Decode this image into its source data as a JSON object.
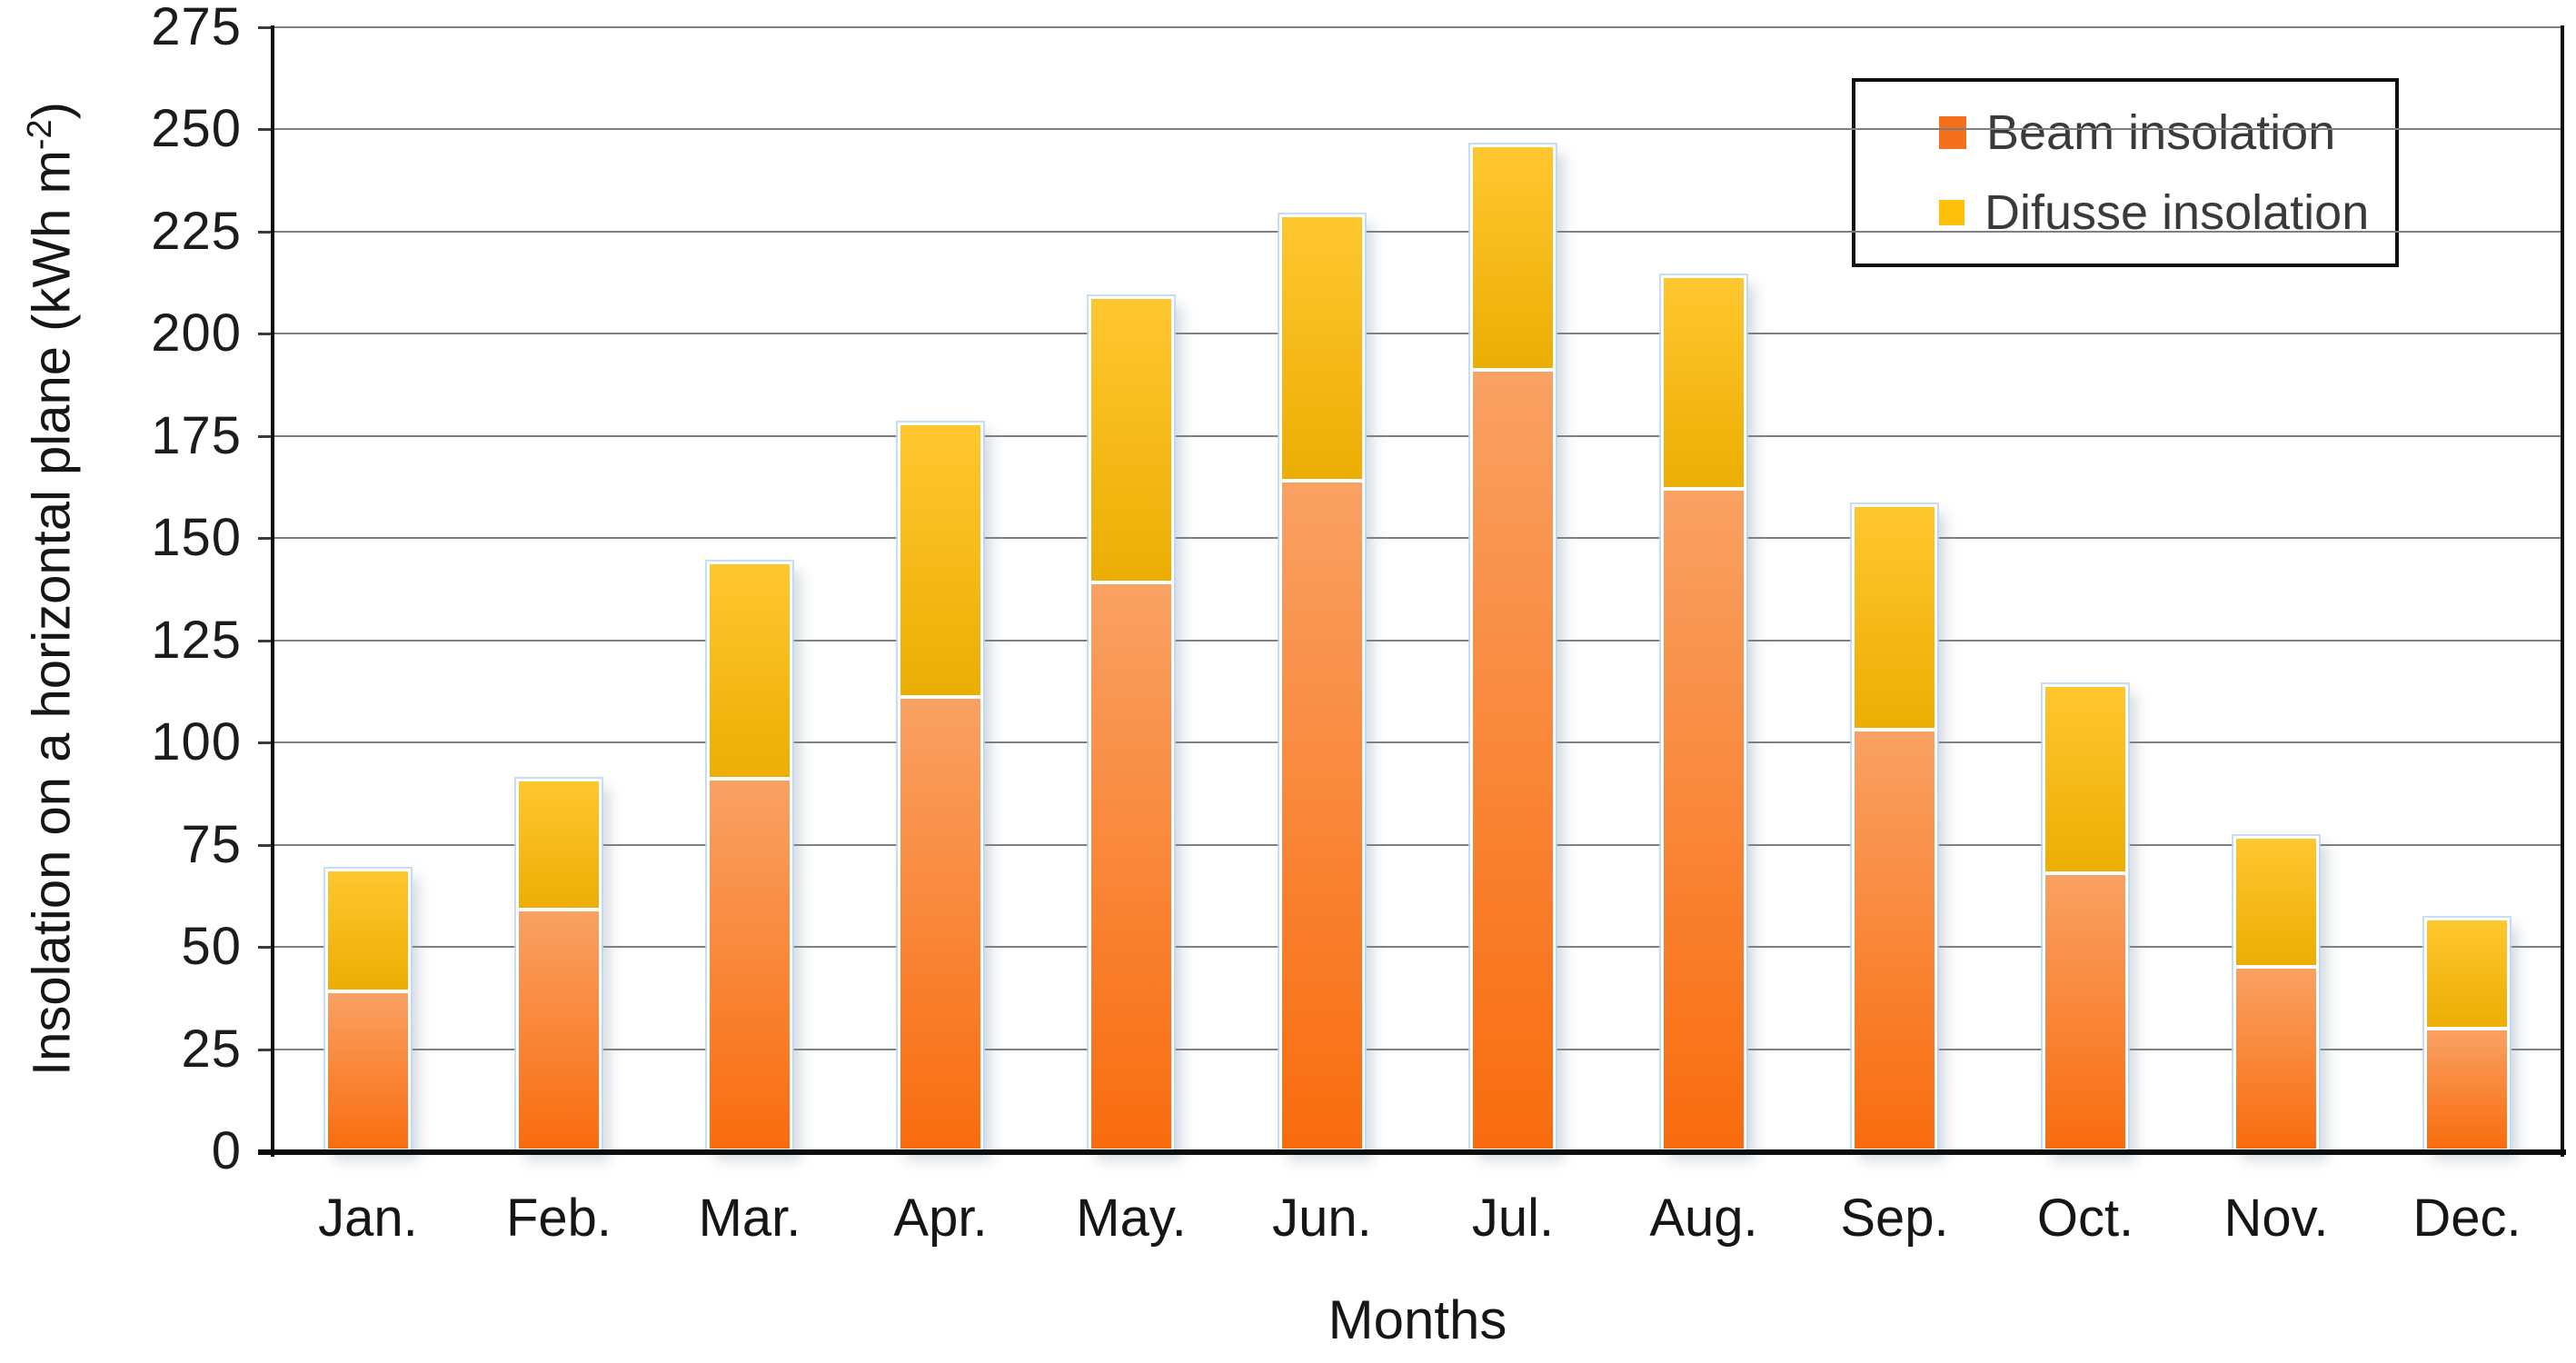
{
  "chart_data": {
    "type": "bar",
    "stacked": true,
    "title": "",
    "xlabel": "Months",
    "ylabel": "Insolation on a horizontal plane (kWh m-2)",
    "ylabel_parts": {
      "main": "Insolation on a horizontal plane (kWh m",
      "sup": "-2",
      "close": ")"
    },
    "categories": [
      "Jan.",
      "Feb.",
      "Mar.",
      "Apr.",
      "May.",
      "Jun.",
      "Jul.",
      "Aug.",
      "Sep.",
      "Oct.",
      "Nov.",
      "Dec."
    ],
    "series": [
      {
        "name": "Beam insolation",
        "legend_color": "#f4701d",
        "color_top": "#f9a163",
        "color_bottom": "#f96c0e",
        "values": [
          38,
          58,
          90,
          110,
          138,
          163,
          190,
          161,
          102,
          67,
          44,
          29
        ]
      },
      {
        "name": "Difusse insolation",
        "legend_color": "#ffc00b",
        "color_top": "#ffc72f",
        "color_bottom": "#ecae04",
        "values": [
          29,
          31,
          52,
          66,
          69,
          64,
          54,
          51,
          54,
          45,
          31,
          26
        ]
      }
    ],
    "stack_totals": [
      67,
      89,
      142,
      176,
      207,
      227,
      244,
      212,
      156,
      112,
      75,
      55
    ],
    "ylim": [
      0,
      275
    ],
    "yticks": [
      0,
      25,
      50,
      75,
      100,
      125,
      150,
      175,
      200,
      225,
      250,
      275
    ],
    "grid": true,
    "legend_position": "top-right"
  },
  "colors": {
    "gridline": "#7f7f7f",
    "axis": "#0d0d0d",
    "text": "#1c1c1c",
    "background": "#ffffff"
  }
}
